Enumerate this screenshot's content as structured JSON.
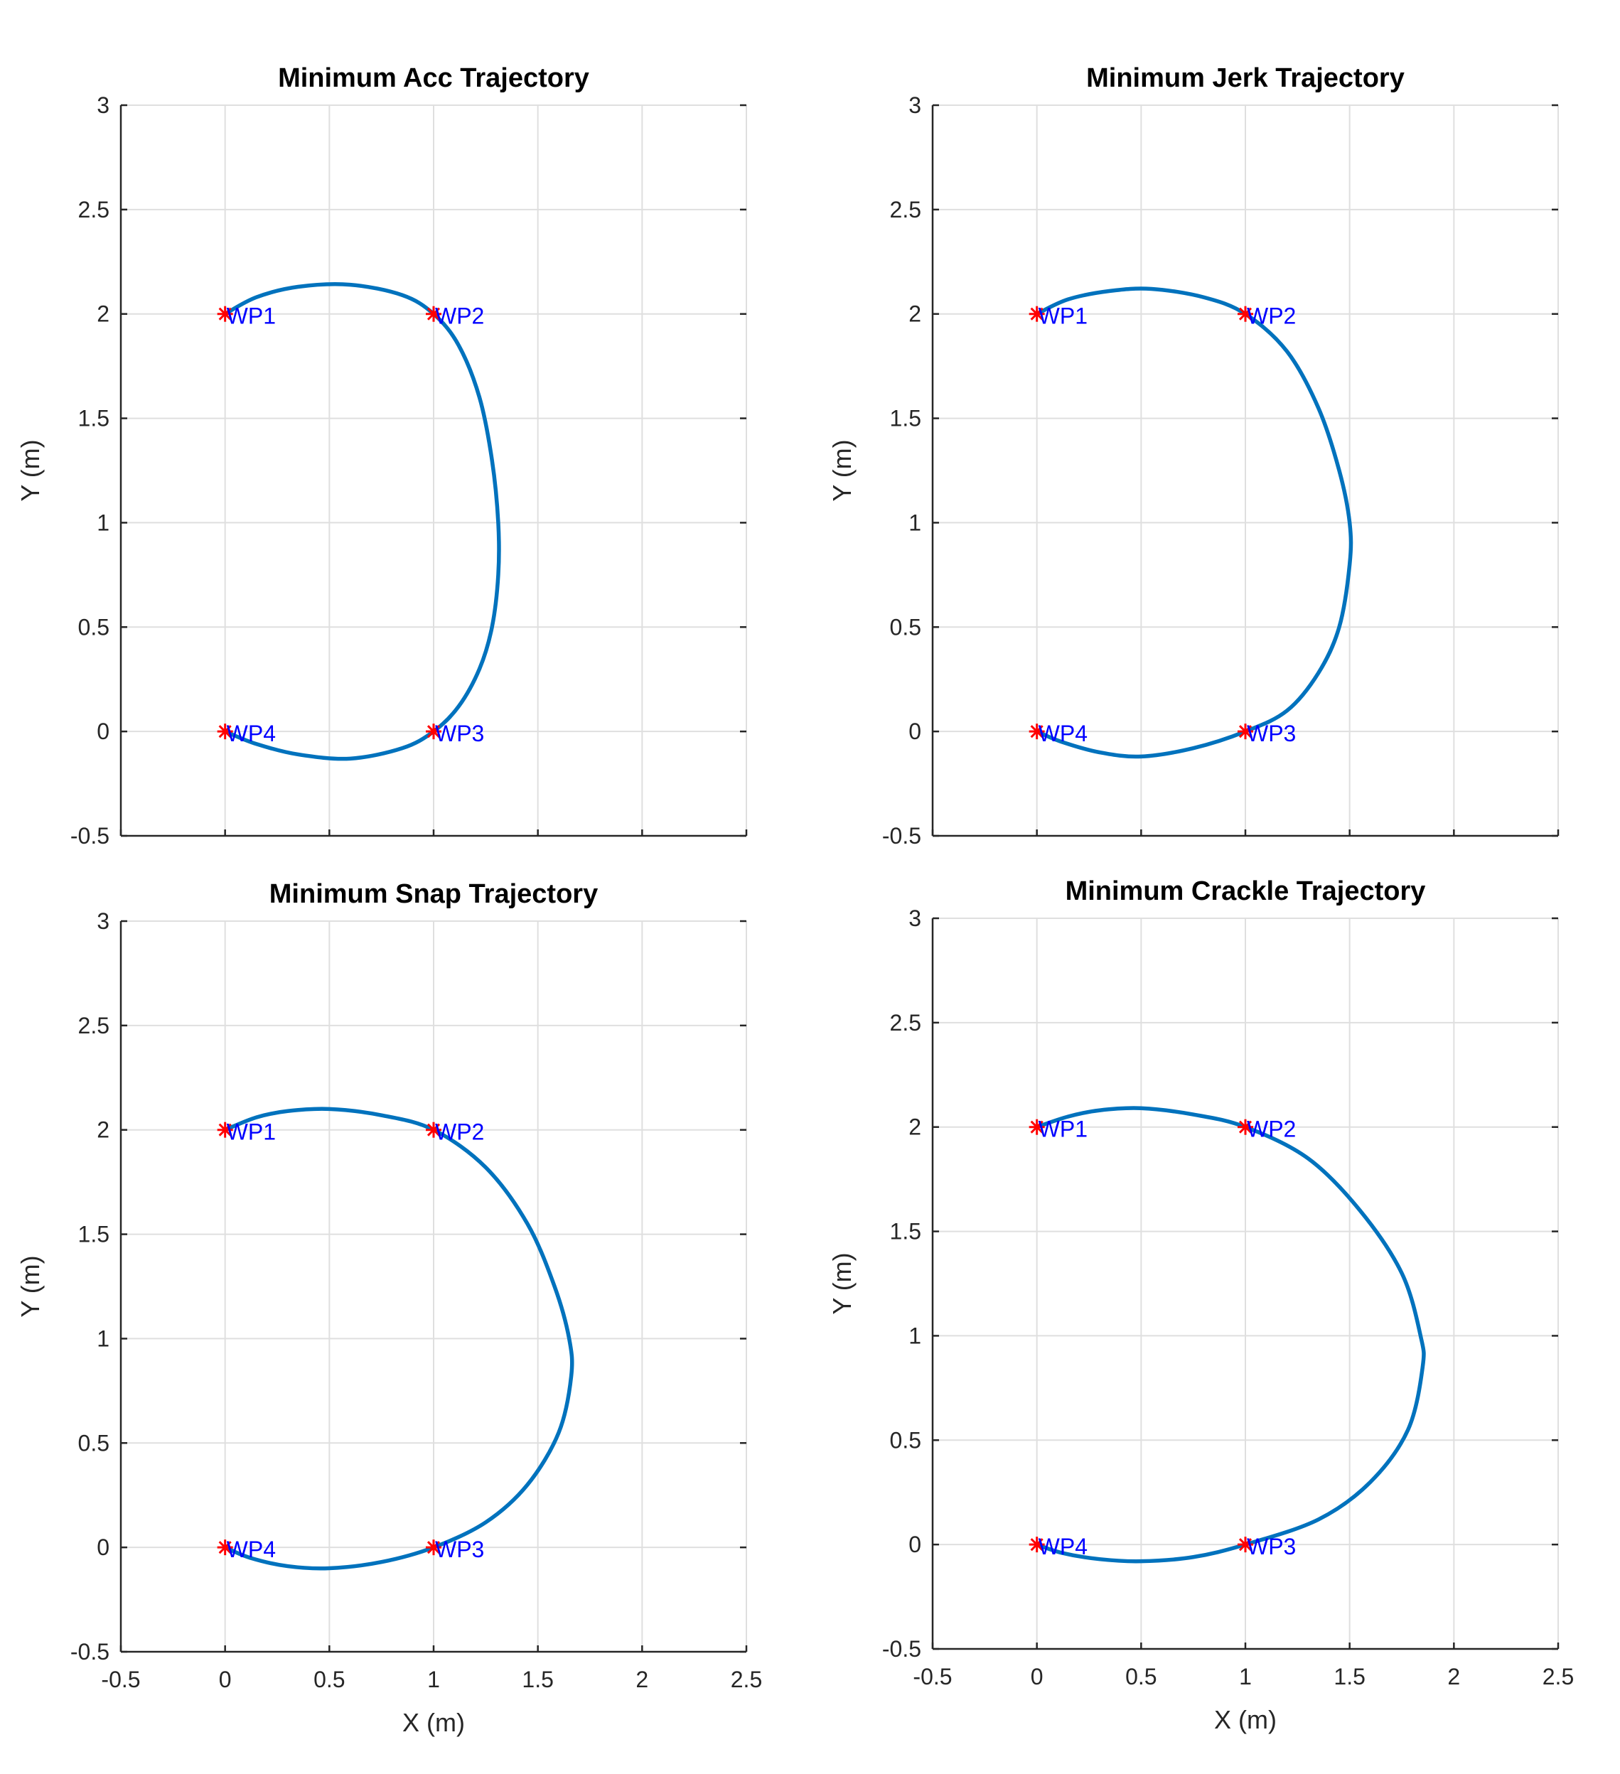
{
  "colors": {
    "trajectory": "#0072BD",
    "waypoint_marker": "#FF0000",
    "waypoint_label": "#0000FF"
  },
  "chart_data": [
    {
      "type": "line",
      "title": "Minimum Acc Trajectory",
      "xlabel": "",
      "ylabel": "Y (m)",
      "xlim": [
        -0.5,
        2.5
      ],
      "ylim": [
        -0.5,
        3
      ],
      "xticks": [],
      "yticks": [
        "-0.5",
        "0",
        "0.5",
        "1",
        "1.5",
        "2",
        "2.5",
        "3"
      ],
      "grid": true,
      "waypoints": [
        {
          "label": "WP1",
          "x": 0,
          "y": 2
        },
        {
          "label": "WP2",
          "x": 1,
          "y": 2
        },
        {
          "label": "WP3",
          "x": 1,
          "y": 0
        },
        {
          "label": "WP4",
          "x": 0,
          "y": 0
        }
      ],
      "series": [
        {
          "name": "trajectory",
          "x": [
            0,
            0.15,
            0.35,
            0.6,
            0.85,
            1.0,
            1.12,
            1.22,
            1.28,
            1.31,
            1.31,
            1.28,
            1.22,
            1.12,
            1.0,
            0.85,
            0.6,
            0.35,
            0.15,
            0
          ],
          "y": [
            2,
            2.08,
            2.13,
            2.14,
            2.09,
            2.0,
            1.85,
            1.6,
            1.3,
            1.0,
            0.75,
            0.5,
            0.3,
            0.12,
            0,
            -0.08,
            -0.13,
            -0.11,
            -0.06,
            0
          ]
        }
      ]
    },
    {
      "type": "line",
      "title": "Minimum Jerk Trajectory",
      "xlabel": "",
      "ylabel": "Y (m)",
      "xlim": [
        -0.5,
        2.5
      ],
      "ylim": [
        -0.5,
        3
      ],
      "xticks": [],
      "yticks": [
        "-0.5",
        "0",
        "0.5",
        "1",
        "1.5",
        "2",
        "2.5",
        "3"
      ],
      "grid": true,
      "waypoints": [
        {
          "label": "WP1",
          "x": 0,
          "y": 2
        },
        {
          "label": "WP2",
          "x": 1,
          "y": 2
        },
        {
          "label": "WP3",
          "x": 1,
          "y": 0
        },
        {
          "label": "WP4",
          "x": 0,
          "y": 0
        }
      ],
      "series": [
        {
          "name": "trajectory",
          "x": [
            0,
            0.15,
            0.35,
            0.55,
            0.8,
            1.0,
            1.2,
            1.35,
            1.45,
            1.5,
            1.5,
            1.45,
            1.35,
            1.2,
            1.0,
            0.75,
            0.5,
            0.3,
            0.12,
            0
          ],
          "y": [
            2,
            2.07,
            2.11,
            2.12,
            2.08,
            2.0,
            1.82,
            1.55,
            1.25,
            1.0,
            0.8,
            0.5,
            0.28,
            0.1,
            0,
            -0.08,
            -0.12,
            -0.1,
            -0.05,
            0
          ]
        }
      ]
    },
    {
      "type": "line",
      "title": "Minimum Snap Trajectory",
      "xlabel": "X (m)",
      "ylabel": "Y (m)",
      "xlim": [
        -0.5,
        2.5
      ],
      "ylim": [
        -0.5,
        3
      ],
      "xticks": [
        "-0.5",
        "0",
        "0.5",
        "1",
        "1.5",
        "2",
        "2.5"
      ],
      "yticks": [
        "-0.5",
        "0",
        "0.5",
        "1",
        "1.5",
        "2",
        "2.5",
        "3"
      ],
      "grid": true,
      "waypoints": [
        {
          "label": "WP1",
          "x": 0,
          "y": 2
        },
        {
          "label": "WP2",
          "x": 1,
          "y": 2
        },
        {
          "label": "WP3",
          "x": 1,
          "y": 0
        },
        {
          "label": "WP4",
          "x": 0,
          "y": 0
        }
      ],
      "series": [
        {
          "name": "trajectory",
          "x": [
            0,
            0.15,
            0.3,
            0.5,
            0.75,
            1.0,
            1.25,
            1.45,
            1.58,
            1.65,
            1.66,
            1.6,
            1.45,
            1.25,
            1.0,
            0.75,
            0.5,
            0.3,
            0.12,
            0
          ],
          "y": [
            2,
            2.06,
            2.09,
            2.1,
            2.07,
            2.0,
            1.82,
            1.55,
            1.25,
            1.0,
            0.82,
            0.55,
            0.3,
            0.12,
            0,
            -0.07,
            -0.1,
            -0.09,
            -0.05,
            0
          ]
        }
      ]
    },
    {
      "type": "line",
      "title": "Minimum Crackle Trajectory",
      "xlabel": "X (m)",
      "ylabel": "Y (m)",
      "xlim": [
        -0.5,
        2.5
      ],
      "ylim": [
        -0.5,
        3
      ],
      "xticks": [
        "-0.5",
        "0",
        "0.5",
        "1",
        "1.5",
        "2",
        "2.5"
      ],
      "yticks": [
        "-0.5",
        "0",
        "0.5",
        "1",
        "1.5",
        "2",
        "2.5",
        "3"
      ],
      "grid": true,
      "waypoints": [
        {
          "label": "WP1",
          "x": 0,
          "y": 2
        },
        {
          "label": "WP2",
          "x": 1,
          "y": 2
        },
        {
          "label": "WP3",
          "x": 1,
          "y": 0
        },
        {
          "label": "WP4",
          "x": 0,
          "y": 0
        }
      ],
      "series": [
        {
          "name": "trajectory",
          "x": [
            0,
            0.15,
            0.3,
            0.5,
            0.75,
            1.0,
            1.3,
            1.55,
            1.75,
            1.84,
            1.85,
            1.78,
            1.6,
            1.35,
            1.0,
            0.75,
            0.5,
            0.3,
            0.12,
            0
          ],
          "y": [
            2,
            2.05,
            2.08,
            2.09,
            2.06,
            2.0,
            1.85,
            1.6,
            1.3,
            1.0,
            0.85,
            0.55,
            0.3,
            0.12,
            0,
            -0.06,
            -0.08,
            -0.07,
            -0.04,
            0
          ]
        }
      ]
    }
  ]
}
